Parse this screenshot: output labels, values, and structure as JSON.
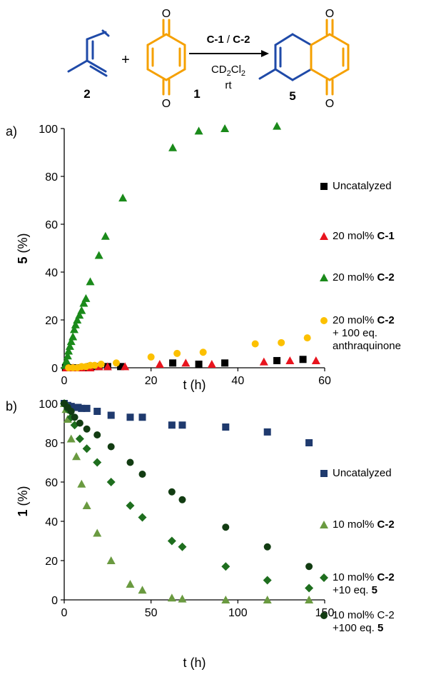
{
  "scheme": {
    "reactant_left_label": "2",
    "plus": "+",
    "reactant_right_label": "1",
    "arrow_top_a": "C-1",
    "arrow_top_sep": " / ",
    "arrow_top_b": "C-2",
    "solvent_main": "CD",
    "solvent_sub1": "2",
    "solvent_cl": "Cl",
    "solvent_sub2": "2",
    "condition": "rt",
    "product_label": "5",
    "o_label": "O",
    "colors": {
      "orange": "#f5a000",
      "blue": "#1f4aa8"
    }
  },
  "chart_data": [
    {
      "panel_label": "a)",
      "type": "scatter",
      "xlabel": "t (h)",
      "ylabel_bold": "5",
      "ylabel_rest": " (%)",
      "xlim": [
        0,
        60
      ],
      "ylim": [
        0,
        100
      ],
      "xticks": [
        "0",
        "20",
        "40",
        "60"
      ],
      "yticks": [
        "0",
        "20",
        "40",
        "60",
        "80",
        "100"
      ],
      "xtick_values": [
        0,
        20,
        40,
        60
      ],
      "ytick_values": [
        0,
        20,
        40,
        60,
        80,
        100
      ],
      "legend": [
        {
          "text": "Uncatalyzed"
        },
        {
          "text": "20 mol% ",
          "bold": "C-1"
        },
        {
          "text": "20 mol% ",
          "bold": "C-2"
        },
        {
          "text": "20 mol% ",
          "bold": "C-2",
          "line2": "+ 100 eq.",
          "line3": "anthraquinone"
        }
      ],
      "series": [
        {
          "marker": "square",
          "color": "#000000",
          "x": [
            0.3,
            1,
            2,
            3,
            4,
            5,
            6,
            7,
            8,
            10,
            13,
            25,
            31,
            37,
            49,
            55
          ],
          "y": [
            0,
            0,
            0,
            0,
            0,
            0,
            0.5,
            0.5,
            0.5,
            0.5,
            0.5,
            2,
            1.5,
            2,
            3,
            3.5
          ]
        },
        {
          "marker": "triangle",
          "color": "#e8141e",
          "x": [
            0.5,
            2,
            4,
            6,
            8,
            10,
            14,
            22,
            28,
            34,
            46,
            52,
            58
          ],
          "y": [
            0,
            0,
            0,
            0,
            0.5,
            0.5,
            0.5,
            1.5,
            2,
            1.5,
            2.5,
            3,
            3
          ]
        },
        {
          "marker": "triangle",
          "color": "#1a8a1a",
          "x": [
            0.2,
            0.5,
            0.8,
            1,
            1.3,
            1.6,
            2,
            2.3,
            2.6,
            3,
            3.5,
            4,
            4.5,
            5,
            6,
            8,
            9.5,
            13.5,
            25,
            31,
            37,
            49
          ],
          "y": [
            1,
            3,
            5,
            7,
            9,
            11,
            13,
            16,
            18,
            20,
            22,
            24,
            27,
            29,
            36,
            47,
            55,
            71,
            92,
            99,
            100,
            101
          ]
        },
        {
          "marker": "circle",
          "color": "#fcc000",
          "x": [
            1,
            2,
            3,
            4,
            5,
            6,
            7,
            8.5,
            12,
            20,
            26,
            32,
            44,
            50,
            56
          ],
          "y": [
            0,
            0,
            0,
            0.5,
            0.5,
            1,
            1,
            1.5,
            2,
            4.5,
            6,
            6.5,
            10,
            10.5,
            12.5
          ]
        }
      ]
    },
    {
      "panel_label": "b)",
      "type": "scatter",
      "xlabel": "t (h)",
      "ylabel_bold": "1",
      "ylabel_rest": " (%)",
      "xlim": [
        0,
        150
      ],
      "ylim": [
        0,
        100
      ],
      "xticks": [
        "0",
        "50",
        "100",
        "150"
      ],
      "yticks": [
        "0",
        "20",
        "40",
        "60",
        "80",
        "100"
      ],
      "xtick_values": [
        0,
        50,
        100,
        150
      ],
      "ytick_values": [
        0,
        20,
        40,
        60,
        80,
        100
      ],
      "legend": [
        {
          "text": "Uncatalyzed"
        },
        {
          "text": "10 mol% ",
          "bold": "C-2"
        },
        {
          "text": "10 mol% ",
          "bold": "C-2",
          "line2": "+10 eq. ",
          "line2_bold": "5"
        },
        {
          "text": "10 mol% C-2",
          "line2": "+100 eq. ",
          "line2_bold": "5"
        }
      ],
      "series": [
        {
          "marker": "square",
          "color": "#1f3a6e",
          "x": [
            0,
            2,
            4,
            6,
            8,
            10,
            13,
            19,
            27,
            38,
            45,
            62,
            68,
            93,
            117,
            141
          ],
          "y": [
            100,
            99,
            98.5,
            98,
            98,
            97.5,
            97.5,
            96,
            94,
            93,
            93,
            89,
            89,
            88,
            85.5,
            80
          ]
        },
        {
          "marker": "triangle",
          "color": "#6a9a40",
          "x": [
            0,
            1,
            2,
            4,
            7,
            10,
            13,
            19,
            27,
            38,
            45,
            62,
            68,
            93,
            117,
            141
          ],
          "y": [
            100,
            97,
            92,
            82,
            73,
            59,
            48,
            34,
            20,
            8,
            5,
            1,
            0.5,
            0,
            0,
            0
          ]
        },
        {
          "marker": "diamond",
          "color": "#1e6e1e",
          "x": [
            0,
            1,
            2,
            4,
            6,
            9,
            13,
            19,
            27,
            38,
            45,
            62,
            68,
            93,
            117,
            141
          ],
          "y": [
            100,
            99,
            97,
            93,
            89,
            82,
            77,
            70,
            60,
            48,
            42,
            30,
            27,
            17,
            10,
            6
          ]
        },
        {
          "marker": "circle",
          "color": "#123c12",
          "x": [
            0,
            2,
            4,
            6,
            9,
            13,
            19,
            27,
            38,
            45,
            62,
            68,
            93,
            117,
            141
          ],
          "y": [
            100,
            98,
            96,
            93,
            90,
            87,
            84,
            78,
            70,
            64,
            55,
            51,
            37,
            27,
            17
          ]
        }
      ]
    }
  ]
}
